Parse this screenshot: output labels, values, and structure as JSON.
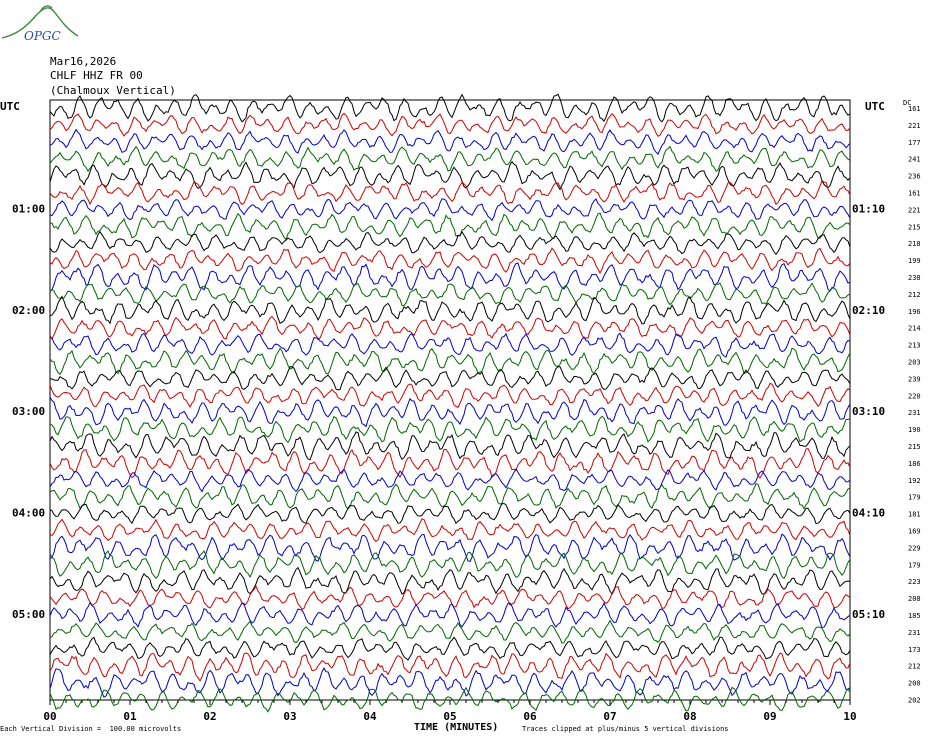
{
  "logo_text": "OPGC",
  "header": {
    "date": "Mar16,2026",
    "station": "CHLF HHZ FR 00",
    "component": "(Chalmoux Vertical)"
  },
  "utc_left": "UTC",
  "utc_right": "UTC",
  "dc_label": "DC",
  "footer": {
    "scale_note": "Each Vertical Division =  100.00 microvolts",
    "clip_note": "Traces clipped at plus/minus 5 vertical divisions"
  },
  "colors": {
    "trace_cycle": [
      "#000000",
      "#d00000",
      "#0000cc",
      "#006600"
    ]
  },
  "chart_data": {
    "type": "line",
    "xlabel": "TIME (MINUTES)",
    "x_ticks": [
      "00",
      "01",
      "02",
      "03",
      "04",
      "05",
      "06",
      "07",
      "08",
      "09",
      "10"
    ],
    "xlim": [
      0,
      10
    ],
    "left_time_labels": [
      "01:00",
      "02:00",
      "03:00",
      "04:00",
      "05:00"
    ],
    "right_time_labels": [
      "01:10",
      "02:10",
      "03:10",
      "04:10",
      "05:10"
    ],
    "trace_count": 36,
    "dc_offsets": [
      161,
      221,
      177,
      241,
      236,
      161,
      221,
      215,
      218,
      199,
      238,
      212,
      196,
      214,
      213,
      203,
      239,
      220,
      231,
      190,
      215,
      186,
      192,
      179,
      181,
      169,
      229,
      179,
      223,
      208,
      185,
      231,
      173,
      212,
      200,
      202
    ]
  }
}
